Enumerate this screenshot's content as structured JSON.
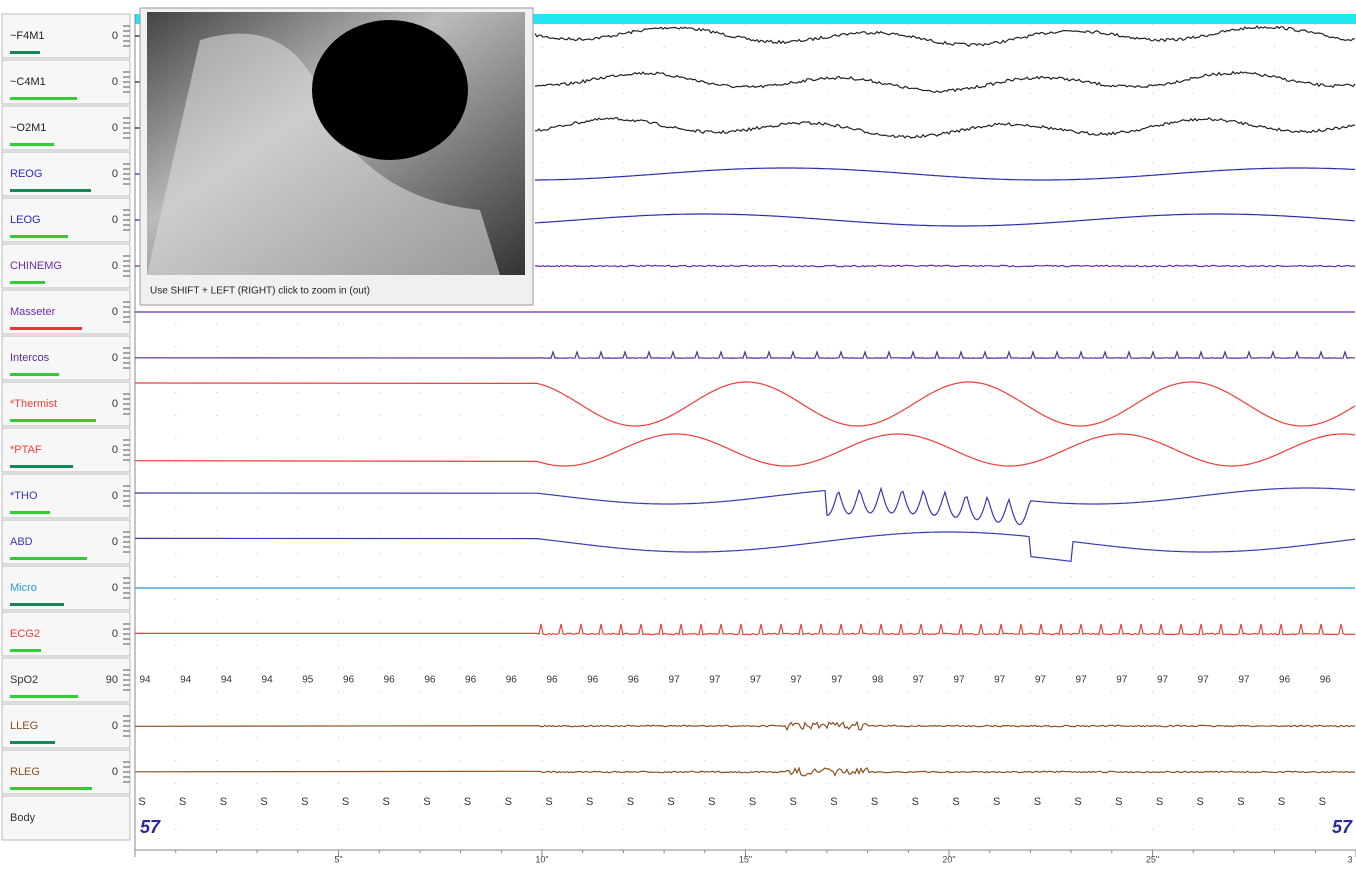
{
  "channels": [
    {
      "label": "~F4M1",
      "scale": "0",
      "color": "#222222"
    },
    {
      "label": "~C4M1",
      "scale": "0",
      "color": "#222222"
    },
    {
      "label": "~O2M1",
      "scale": "0",
      "color": "#222222"
    },
    {
      "label": "REOG",
      "scale": "0",
      "color": "#2b2bb0"
    },
    {
      "label": "LEOG",
      "scale": "0",
      "color": "#2b2bb0"
    },
    {
      "label": "CHINEMG",
      "scale": "0",
      "color": "#6a2aa8"
    },
    {
      "label": "Masseter",
      "scale": "0",
      "color": "#6a2aa8"
    },
    {
      "label": "Intercos",
      "scale": "0",
      "color": "#5a2a9a"
    },
    {
      "label": "*Thermist",
      "scale": "0",
      "color": "#f03c3c"
    },
    {
      "label": "*PTAF",
      "scale": "0",
      "color": "#f03c3c"
    },
    {
      "label": "*THO",
      "scale": "0",
      "color": "#3a3ab0"
    },
    {
      "label": "ABD",
      "scale": "0",
      "color": "#3a3ab0"
    },
    {
      "label": "Micro",
      "scale": "0",
      "color": "#1e9bdc"
    },
    {
      "label": "ECG2",
      "scale": "0",
      "color": "#f03c3c"
    },
    {
      "label": "SpO2",
      "scale": "90",
      "color": "#333333"
    },
    {
      "label": "LLEG",
      "scale": "0",
      "color": "#8a5020"
    },
    {
      "label": "RLEG",
      "scale": "0",
      "color": "#8a5020"
    },
    {
      "label": "Body",
      "scale": "",
      "color": "#333333"
    }
  ],
  "spo2_values": [
    "94",
    "94",
    "94",
    "94",
    "95",
    "96",
    "96",
    "96",
    "96",
    "96",
    "96",
    "96",
    "96",
    "97",
    "97",
    "97",
    "97",
    "97",
    "98",
    "97",
    "97",
    "97",
    "97",
    "97",
    "97",
    "97",
    "97",
    "97",
    "96",
    "96"
  ],
  "body_positions": [
    "S",
    "S",
    "S",
    "S",
    "S",
    "S",
    "S",
    "S",
    "S",
    "S",
    "S",
    "S",
    "S",
    "S",
    "S",
    "S",
    "S",
    "S",
    "S",
    "S",
    "S",
    "S",
    "S",
    "S",
    "S",
    "S",
    "S",
    "S",
    "S",
    "S"
  ],
  "epoch": "57",
  "time_labels": [
    "5\"",
    "10\"",
    "15\"",
    "20\"",
    "25\"",
    "3"
  ],
  "video_caption": "Use SHIFT + LEFT (RIGHT) click to zoom in (out)"
}
